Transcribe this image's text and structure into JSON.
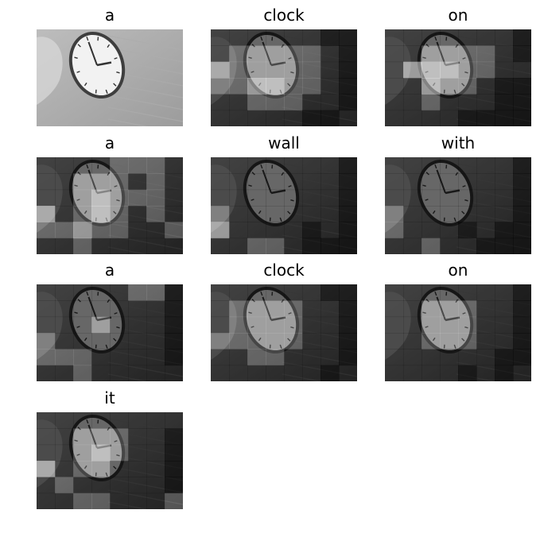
{
  "panels": [
    {
      "word": "a",
      "grid": []
    },
    {
      "word": "clock",
      "grid": [
        [
          1,
          1,
          1,
          1,
          1,
          1,
          0,
          0
        ],
        [
          1,
          2,
          2,
          2,
          2,
          2,
          1,
          0
        ],
        [
          3,
          2,
          2,
          2,
          2,
          2,
          1,
          0
        ],
        [
          2,
          2,
          3,
          3,
          2,
          2,
          1,
          0
        ],
        [
          1,
          1,
          2,
          2,
          2,
          1,
          1,
          0
        ],
        [
          1,
          1,
          1,
          1,
          1,
          0,
          0,
          1
        ]
      ]
    },
    {
      "word": "on",
      "grid": [
        [
          1,
          1,
          1,
          1,
          1,
          1,
          1,
          0
        ],
        [
          1,
          1,
          2,
          2,
          2,
          2,
          1,
          0
        ],
        [
          1,
          3,
          3,
          3,
          2,
          2,
          1,
          1
        ],
        [
          1,
          1,
          3,
          2,
          2,
          1,
          0,
          0
        ],
        [
          1,
          1,
          2,
          1,
          1,
          1,
          0,
          0
        ],
        [
          1,
          1,
          1,
          1,
          0,
          0,
          0,
          0
        ]
      ]
    },
    {
      "word": "a",
      "grid": [
        [
          1,
          1,
          1,
          1,
          2,
          2,
          2,
          1
        ],
        [
          1,
          1,
          2,
          2,
          2,
          1,
          2,
          1
        ],
        [
          1,
          1,
          2,
          3,
          2,
          2,
          2,
          1
        ],
        [
          3,
          1,
          2,
          3,
          2,
          1,
          2,
          1
        ],
        [
          2,
          2,
          3,
          2,
          2,
          1,
          1,
          2
        ],
        [
          1,
          1,
          2,
          1,
          1,
          1,
          1,
          1
        ]
      ]
    },
    {
      "word": "wall",
      "grid": [
        [
          1,
          1,
          1,
          1,
          1,
          1,
          1,
          0
        ],
        [
          1,
          1,
          1,
          1,
          1,
          1,
          1,
          0
        ],
        [
          1,
          1,
          1,
          1,
          1,
          1,
          1,
          0
        ],
        [
          2,
          1,
          1,
          1,
          1,
          1,
          1,
          0
        ],
        [
          3,
          1,
          1,
          1,
          1,
          0,
          1,
          0
        ],
        [
          1,
          1,
          2,
          2,
          1,
          0,
          0,
          0
        ]
      ]
    },
    {
      "word": "with",
      "grid": [
        [
          1,
          1,
          1,
          1,
          1,
          1,
          1,
          0
        ],
        [
          1,
          1,
          1,
          1,
          1,
          1,
          1,
          0
        ],
        [
          1,
          1,
          1,
          1,
          1,
          1,
          1,
          0
        ],
        [
          2,
          1,
          1,
          1,
          1,
          1,
          1,
          0
        ],
        [
          2,
          1,
          1,
          1,
          0,
          1,
          0,
          0
        ],
        [
          1,
          1,
          2,
          1,
          1,
          0,
          0,
          0
        ]
      ]
    },
    {
      "word": "a",
      "grid": [
        [
          1,
          1,
          1,
          1,
          1,
          2,
          2,
          0
        ],
        [
          1,
          1,
          1,
          1,
          1,
          1,
          1,
          0
        ],
        [
          1,
          1,
          1,
          2,
          1,
          1,
          1,
          0
        ],
        [
          2,
          1,
          1,
          1,
          1,
          1,
          1,
          0
        ],
        [
          2,
          2,
          2,
          1,
          1,
          1,
          1,
          0
        ],
        [
          1,
          1,
          2,
          1,
          1,
          1,
          1,
          1
        ]
      ]
    },
    {
      "word": "clock",
      "grid": [
        [
          1,
          1,
          1,
          1,
          1,
          1,
          0,
          0
        ],
        [
          1,
          2,
          2,
          2,
          2,
          1,
          1,
          0
        ],
        [
          1,
          2,
          2,
          2,
          2,
          1,
          1,
          0
        ],
        [
          2,
          2,
          2,
          2,
          2,
          1,
          1,
          0
        ],
        [
          1,
          1,
          2,
          2,
          1,
          1,
          1,
          0
        ],
        [
          1,
          1,
          1,
          1,
          1,
          1,
          0,
          1
        ]
      ]
    },
    {
      "word": "on",
      "grid": [
        [
          1,
          1,
          1,
          1,
          1,
          1,
          1,
          0
        ],
        [
          1,
          1,
          2,
          2,
          2,
          1,
          1,
          0
        ],
        [
          1,
          1,
          2,
          2,
          2,
          1,
          1,
          0
        ],
        [
          1,
          1,
          2,
          2,
          2,
          1,
          1,
          0
        ],
        [
          1,
          1,
          1,
          1,
          1,
          1,
          0,
          0
        ],
        [
          1,
          1,
          1,
          1,
          0,
          1,
          0,
          1
        ]
      ]
    },
    {
      "word": "it",
      "grid": [
        [
          1,
          1,
          1,
          1,
          1,
          1,
          1,
          1
        ],
        [
          1,
          1,
          2,
          2,
          2,
          1,
          1,
          0
        ],
        [
          1,
          1,
          2,
          3,
          2,
          1,
          1,
          0
        ],
        [
          3,
          1,
          2,
          2,
          1,
          1,
          1,
          0
        ],
        [
          1,
          2,
          1,
          1,
          1,
          1,
          1,
          0
        ],
        [
          1,
          1,
          2,
          2,
          1,
          1,
          1,
          2
        ]
      ]
    }
  ]
}
